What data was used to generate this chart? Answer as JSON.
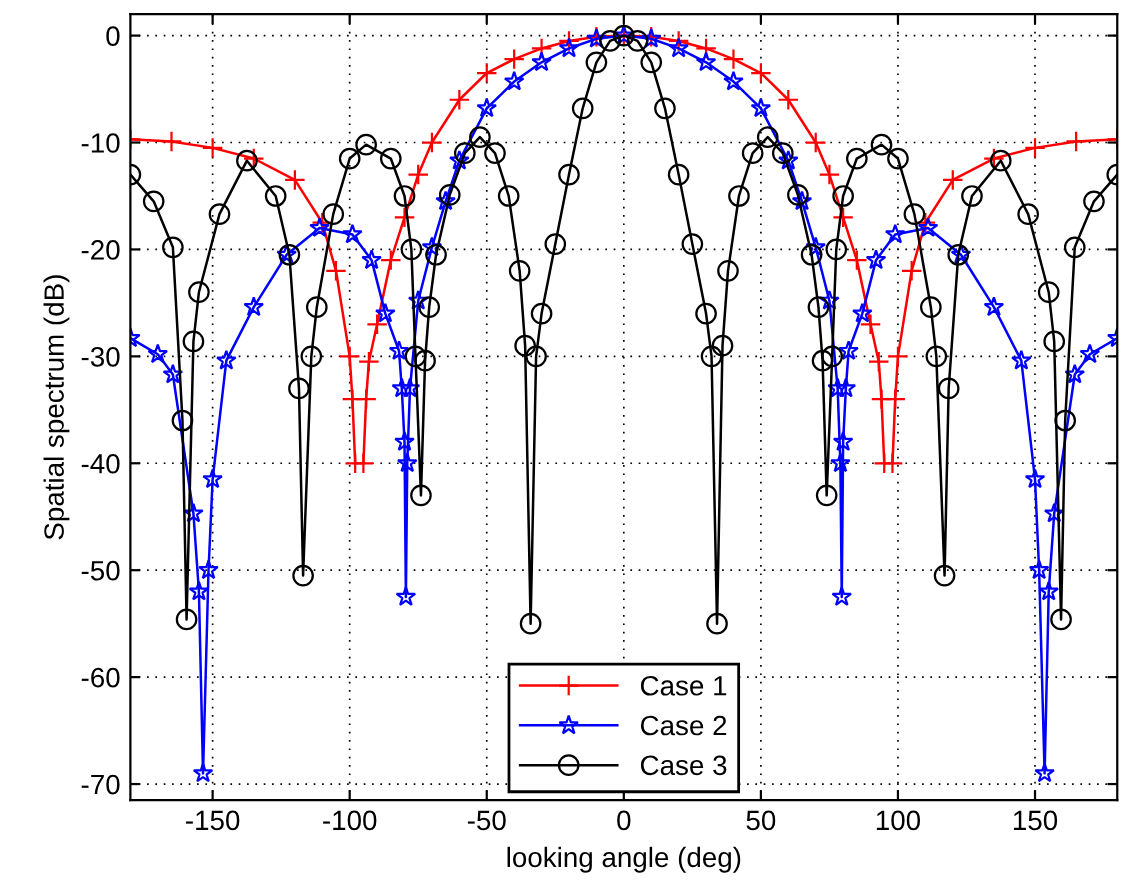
{
  "chart_data": {
    "type": "line",
    "xlabel": "looking angle (deg)",
    "ylabel": "Spatial spectrum (dB)",
    "xlim": [
      -180,
      180
    ],
    "ylim": [
      -71.5,
      2
    ],
    "xticks": [
      -150,
      -100,
      -50,
      0,
      50,
      100,
      150
    ],
    "yticks": [
      -70,
      -60,
      -50,
      -40,
      -30,
      -20,
      -10,
      0
    ],
    "grid": true,
    "legend": "bottom",
    "line_style": "solid",
    "series": [
      {
        "name": "Case 1",
        "color": "#ff0000",
        "marker": "cross",
        "x": [
          -180,
          -165,
          -150,
          -135,
          -120,
          -110,
          -105,
          -100,
          -99,
          -98,
          -96.5,
          -95,
          -94,
          -93,
          -90,
          -85,
          -80,
          -75,
          -70,
          -60,
          -50,
          -40,
          -30,
          -20,
          -10,
          0,
          10,
          20,
          30,
          40,
          50,
          60,
          70,
          75,
          80,
          85,
          90,
          93,
          94,
          95,
          96.5,
          98,
          99,
          100,
          105,
          110,
          120,
          135,
          150,
          165,
          180
        ],
        "values": [
          -9.7,
          -9.9,
          -10.5,
          -11.5,
          -13.5,
          -17.5,
          -22,
          -30,
          -34,
          -40,
          null,
          -40,
          -34,
          -30.5,
          -27,
          -21,
          -17,
          -13,
          -10,
          -6,
          -3.5,
          -2.2,
          -1.2,
          -0.5,
          -0.1,
          0,
          -0.1,
          -0.5,
          -1.2,
          -2.2,
          -3.5,
          -6,
          -10,
          -13,
          -17,
          -21,
          -27,
          -30.5,
          -34,
          -40,
          null,
          -40,
          -34,
          -30,
          -22,
          -17.5,
          -13.5,
          -11.5,
          -10.5,
          -9.9,
          -9.7
        ]
      },
      {
        "name": "Case 2",
        "color": "#0000ff",
        "marker": "star",
        "x": [
          -180,
          -170,
          -164.5,
          -157,
          -155,
          -153.5,
          -151.5,
          -150,
          -145,
          -135,
          -123,
          -111,
          -99,
          -92,
          -87,
          -82,
          -81,
          -80,
          -79.5,
          -79,
          -78,
          -75,
          -70,
          -65,
          -60,
          -50,
          -40,
          -30,
          -20,
          -10,
          0,
          10,
          20,
          30,
          40,
          50,
          60,
          65,
          70,
          75,
          78,
          79,
          79.5,
          80,
          81,
          82,
          87,
          92,
          99,
          111,
          123,
          135,
          145,
          150,
          151.5,
          153.5,
          155,
          157,
          164.5,
          170,
          180
        ],
        "values": [
          -28.3,
          -29.8,
          -31.7,
          -44.7,
          -52,
          -69,
          -50,
          -41.5,
          -30.4,
          -25.4,
          -20.5,
          -18,
          -18.6,
          -21,
          -26,
          -29.5,
          -33,
          -38,
          -52.5,
          -40,
          -33,
          -24.8,
          -19.8,
          -15.5,
          -11.7,
          -6.8,
          -4.3,
          -2.5,
          -1.2,
          -0.3,
          0,
          -0.3,
          -1.2,
          -2.5,
          -4.3,
          -6.8,
          -11.7,
          -15.5,
          -19.8,
          -24.8,
          -33,
          -40,
          -52.5,
          -38,
          -33,
          -29.5,
          -26,
          -21,
          -18.6,
          -18,
          -20.5,
          -25.4,
          -30.4,
          -41.5,
          -50,
          -69,
          -52,
          -44.7,
          -31.7,
          -29.8,
          -28.3
        ]
      },
      {
        "name": "Case 3",
        "color": "#000000",
        "marker": "circle",
        "x": [
          -180,
          -171.5,
          -164.5,
          -161,
          -159.5,
          -157,
          -155,
          -147.5,
          -137.5,
          -127,
          -122,
          -118.5,
          -117,
          -114,
          -112,
          -106,
          -100,
          -94,
          -85,
          -80,
          -77.5,
          -76,
          -74,
          -72.5,
          -71,
          -68.5,
          -63.5,
          -58,
          -52.5,
          -47,
          -42,
          -38,
          -36,
          -34,
          -32,
          -30,
          -25,
          -20,
          -15,
          -10,
          -5,
          0,
          5,
          10,
          15,
          20,
          25,
          30,
          32,
          34,
          36,
          38,
          42,
          47,
          52.5,
          58,
          63.5,
          68.5,
          71,
          72.5,
          74,
          76,
          77.5,
          80,
          85,
          94,
          100,
          106,
          112,
          114,
          117,
          118.5,
          122,
          127,
          137.5,
          147.5,
          155,
          157,
          159.5,
          161,
          164.5,
          171.5,
          180
        ],
        "values": [
          -13,
          -15.5,
          -19.8,
          -36,
          -54.6,
          -28.6,
          -24,
          -16.7,
          -11.7,
          -15,
          -20.5,
          -33,
          -50.5,
          -30,
          -25.4,
          -16.7,
          -11.5,
          -10.2,
          -11.5,
          -15,
          -20,
          -30,
          -43,
          -30.4,
          -25.4,
          -20.5,
          -14.9,
          -11,
          -9.5,
          -11,
          -15,
          -22,
          -29,
          -55,
          -30,
          -26,
          -19.5,
          -13,
          -6.8,
          -2.5,
          -0.5,
          0,
          -0.5,
          -2.5,
          -6.8,
          -13,
          -19.5,
          -26,
          -30,
          -55,
          -29,
          -22,
          -15,
          -11,
          -9.5,
          -11,
          -14.9,
          -20.5,
          -25.4,
          -30.4,
          -43,
          -30,
          -20,
          -15,
          -11.5,
          -10.2,
          -11.5,
          -16.7,
          -25.4,
          -30,
          -50.5,
          -33,
          -20.5,
          -15,
          -11.7,
          -16.7,
          -24,
          -28.6,
          -54.6,
          -36,
          -19.8,
          -15.5,
          -13
        ]
      }
    ]
  }
}
